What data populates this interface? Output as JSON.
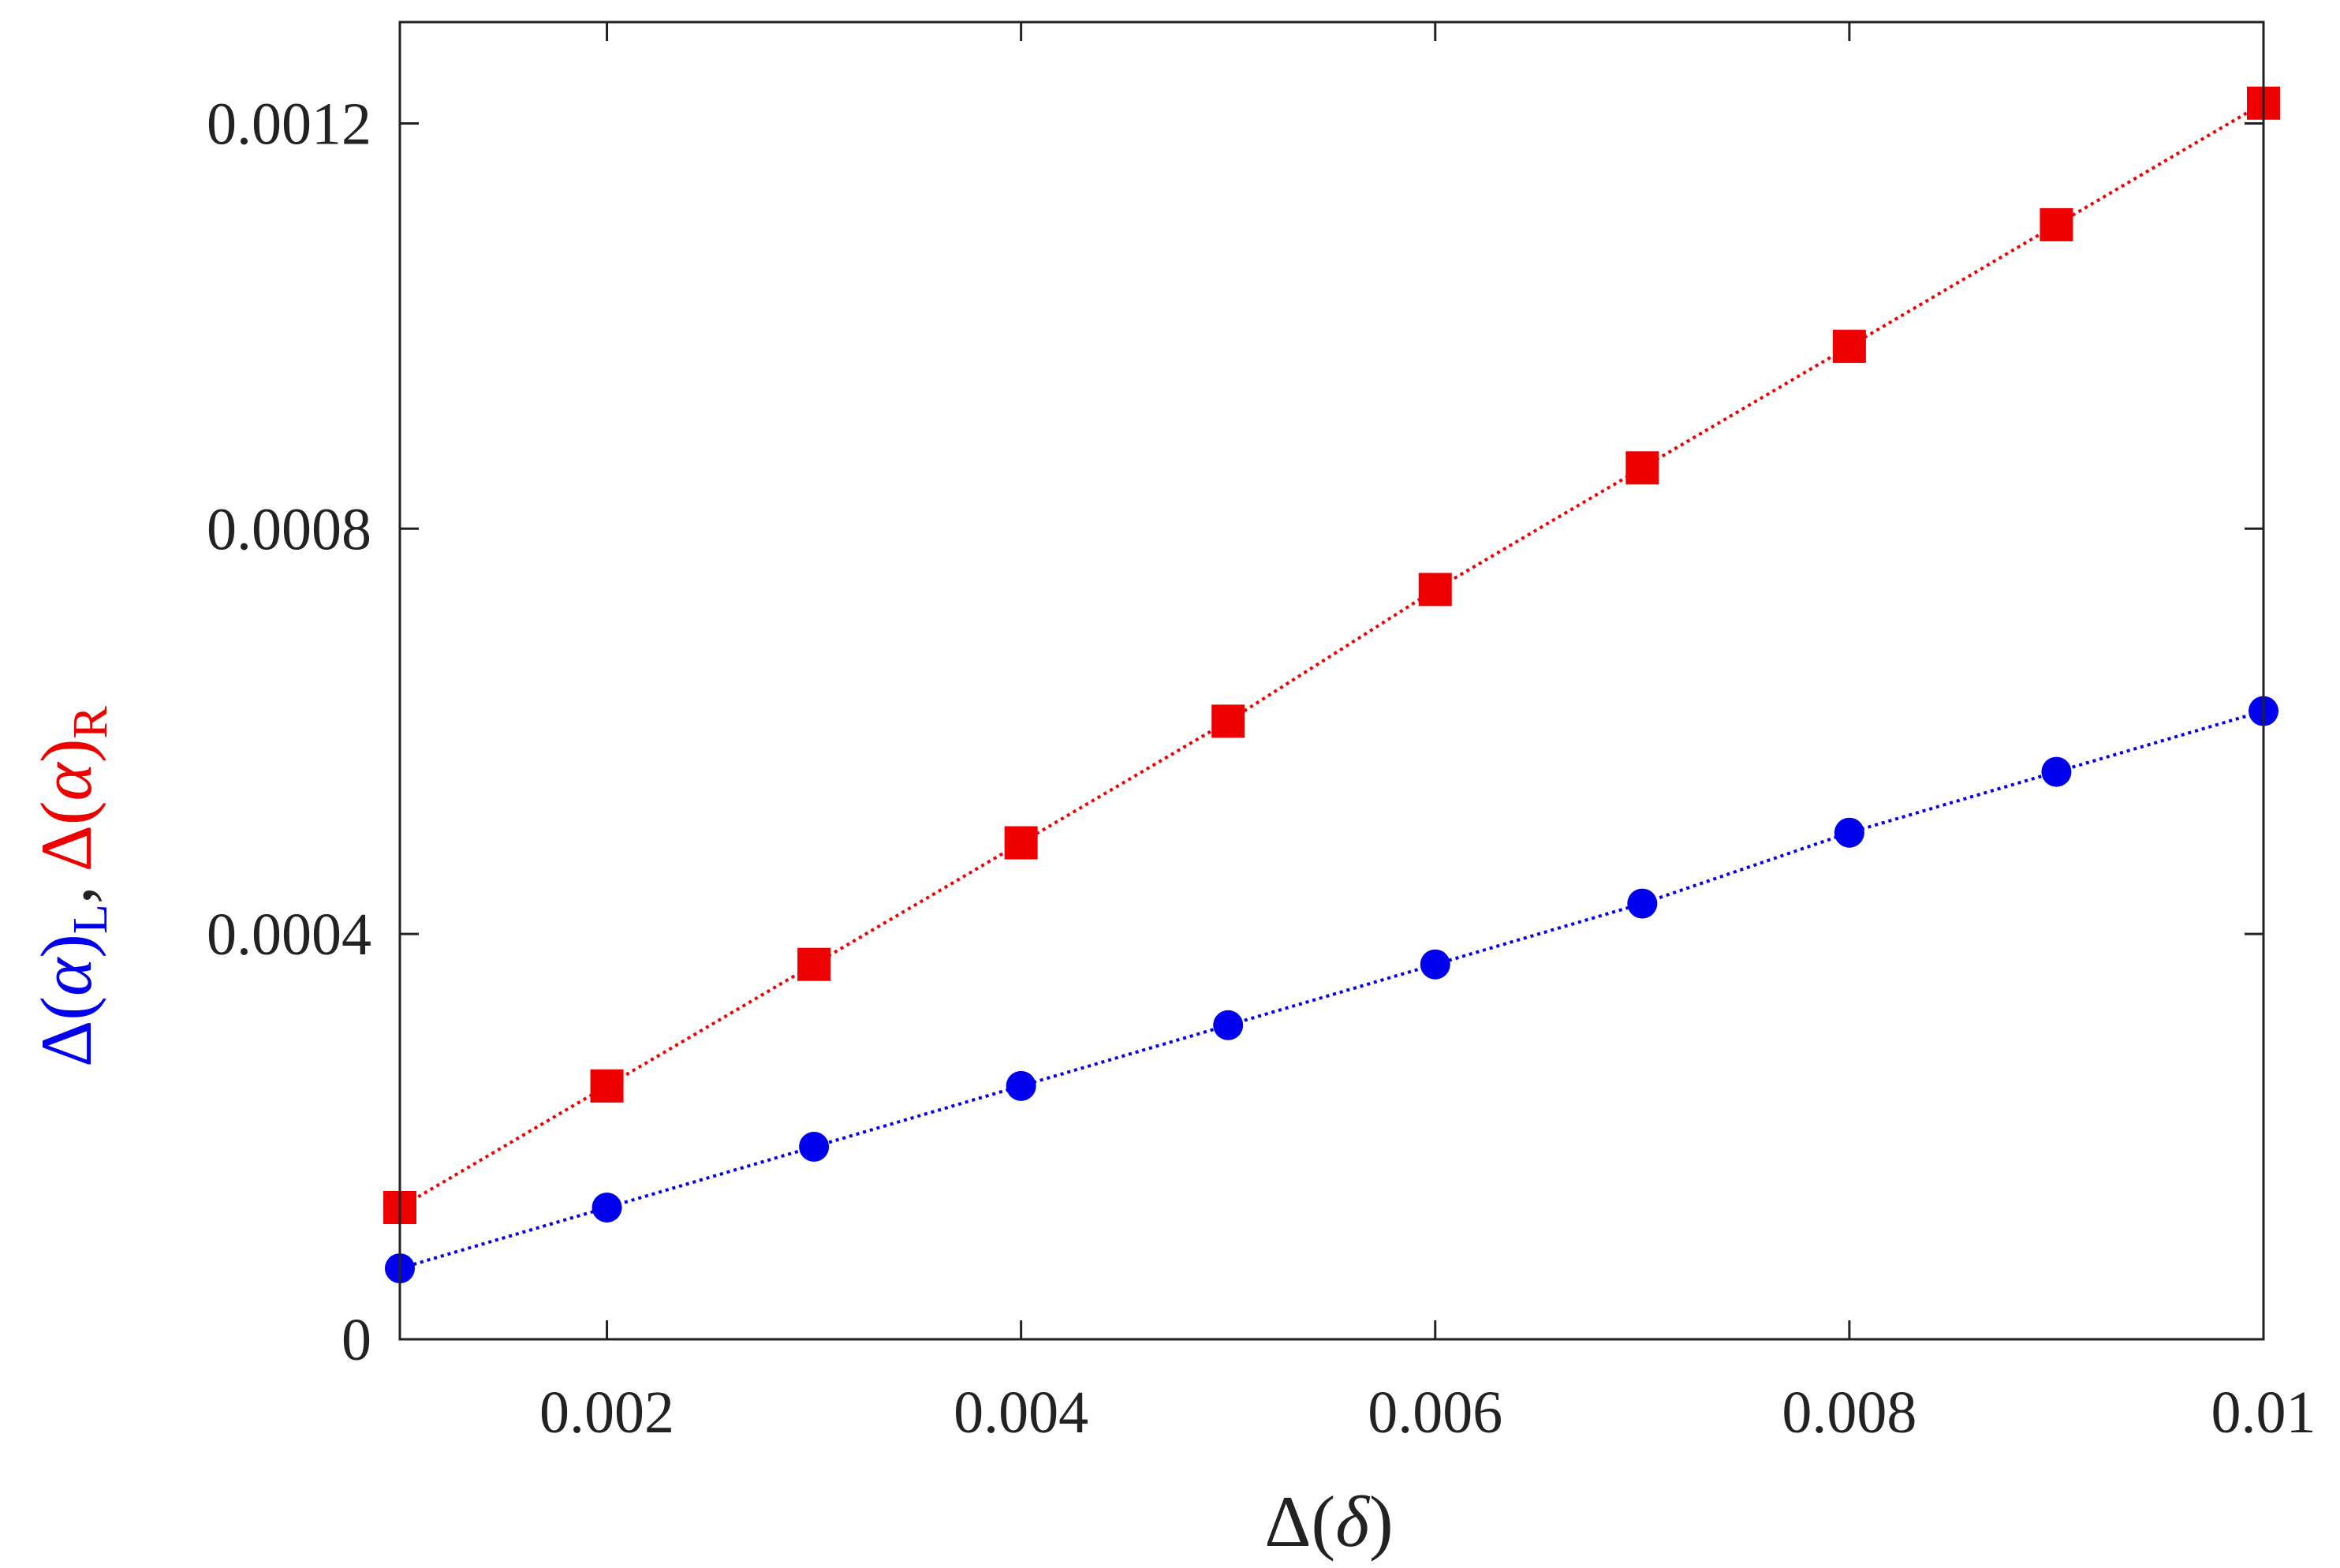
{
  "chart_data": {
    "type": "line",
    "title": "",
    "xlabel": {
      "prefix": "Δ(",
      "symbol": "δ",
      "suffix": ")"
    },
    "ylabel": {
      "left_prefix": "Δ(",
      "left_symbol": "α",
      "left_suffix": ")",
      "left_subscript": "L",
      "separator": ",",
      "right_prefix": "Δ(",
      "right_symbol": "α",
      "right_suffix": ")",
      "right_subscript": "R"
    },
    "xlim": [
      0.001,
      0.01
    ],
    "ylim": [
      0,
      0.0013
    ],
    "xticks": [
      0.002,
      0.004,
      0.006,
      0.008,
      0.01
    ],
    "xtick_labels": [
      "0.002",
      "0.004",
      "0.006",
      "0.008",
      "0.01"
    ],
    "yticks": [
      0,
      0.0004,
      0.0008,
      0.0012
    ],
    "ytick_labels": [
      "0",
      "0.0004",
      "0.0008",
      "0.0012"
    ],
    "grid": false,
    "legend": false,
    "series": [
      {
        "marker": "circle",
        "color": "#0000ee",
        "line_style": "dotted",
        "x": [
          0.001,
          0.002,
          0.003,
          0.004,
          0.005,
          0.006,
          0.007,
          0.008,
          0.009,
          0.01
        ],
        "y": [
          7e-05,
          0.00013,
          0.00019,
          0.00025,
          0.00031,
          0.00037,
          0.00043,
          0.0005,
          0.00056,
          0.00062
        ]
      },
      {
        "marker": "square",
        "color": "#ee0000",
        "line_style": "dotted",
        "x": [
          0.001,
          0.002,
          0.003,
          0.004,
          0.005,
          0.006,
          0.007,
          0.008,
          0.009,
          0.01
        ],
        "y": [
          0.00013,
          0.00025,
          0.00037,
          0.00049,
          0.00061,
          0.00074,
          0.00086,
          0.00098,
          0.0011,
          0.00122
        ]
      }
    ]
  }
}
